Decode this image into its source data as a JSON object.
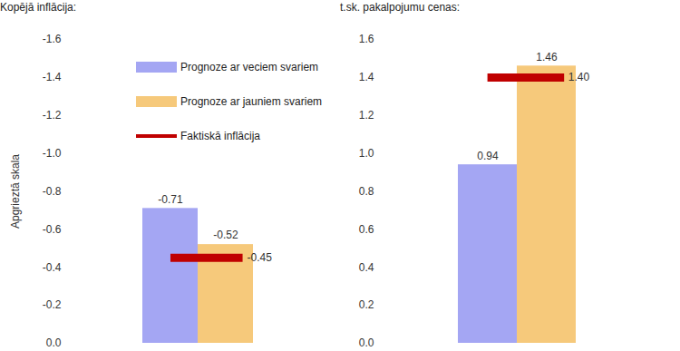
{
  "chart_data": [
    {
      "type": "bar",
      "title": "Kopējā inflācija:",
      "ylabel": "Apgrieztā skala",
      "categories": [
        null
      ],
      "series": [
        {
          "name": "Prognoze ar veciem svariem",
          "type": "bar",
          "color": "#a4a6f3",
          "values": [
            -0.71
          ]
        },
        {
          "name": "Prognoze ar jauniem svariem",
          "type": "bar",
          "color": "#f6c97b",
          "values": [
            -0.52
          ]
        },
        {
          "name": "Faktiskā inflācija",
          "type": "tick",
          "color": "#c00000",
          "values": [
            -0.45
          ]
        }
      ],
      "ylim": [
        0,
        -1.6
      ],
      "yticks": [
        {
          "value": 0,
          "label": "0.0"
        },
        -0.2,
        -0.4,
        -0.6,
        -0.8,
        {
          "value": -1,
          "label": "-1.0"
        },
        -1.2,
        -1.4,
        -1.6
      ],
      "data_labels": true,
      "legend": "top-right",
      "grid": false
    },
    {
      "type": "bar",
      "title": "t.sk. pakalpojumu cenas:",
      "categories": [
        null
      ],
      "series": [
        {
          "name": "Prognoze ar veciem svariem",
          "type": "bar",
          "color": "#a4a6f3",
          "values": [
            0.94
          ]
        },
        {
          "name": "Prognoze ar jauniem svariem",
          "type": "bar",
          "color": "#f6c97b",
          "values": [
            1.46
          ]
        },
        {
          "name": "Faktiskā inflācija",
          "type": "tick",
          "color": "#c00000",
          "values": [
            1.4
          ],
          "value_labels": [
            "1.40"
          ]
        }
      ],
      "ylim": [
        0,
        1.6
      ],
      "yticks": [
        {
          "value": 0,
          "label": "0.0"
        },
        0.2,
        0.4,
        0.6,
        0.8,
        {
          "value": 1,
          "label": "1.0"
        },
        1.2,
        1.4,
        1.6
      ],
      "data_labels": true,
      "legend": false,
      "grid": false
    }
  ]
}
